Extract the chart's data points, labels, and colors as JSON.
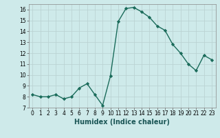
{
  "x": [
    0,
    1,
    2,
    3,
    4,
    5,
    6,
    7,
    8,
    9,
    10,
    11,
    12,
    13,
    14,
    15,
    16,
    17,
    18,
    19,
    20,
    21,
    22,
    23
  ],
  "y": [
    8.2,
    8.0,
    8.0,
    8.2,
    7.8,
    8.0,
    8.8,
    9.2,
    8.2,
    7.2,
    9.9,
    14.9,
    16.1,
    16.2,
    15.8,
    15.3,
    14.5,
    14.1,
    12.8,
    12.0,
    11.0,
    10.4,
    11.8,
    11.4
  ],
  "line_color": "#1a6b5a",
  "marker": "D",
  "markersize": 2.2,
  "linewidth": 1.0,
  "xlabel": "Humidex (Indice chaleur)",
  "ylim": [
    7,
    16.5
  ],
  "xlim": [
    -0.5,
    23.5
  ],
  "yticks": [
    7,
    8,
    9,
    10,
    11,
    12,
    13,
    14,
    15,
    16
  ],
  "xticks": [
    0,
    1,
    2,
    3,
    4,
    5,
    6,
    7,
    8,
    9,
    10,
    11,
    12,
    13,
    14,
    15,
    16,
    17,
    18,
    19,
    20,
    21,
    22,
    23
  ],
  "bg_color": "#ceeaea",
  "grid_color": "#b8d0d0",
  "tick_fontsize": 5.5,
  "xlabel_fontsize": 7.0
}
